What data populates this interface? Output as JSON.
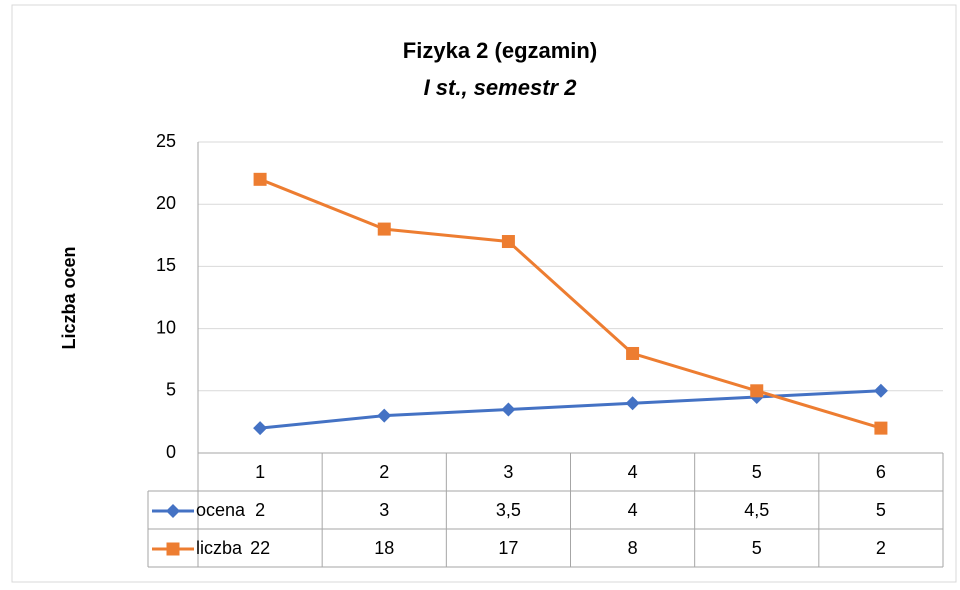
{
  "chart_data": {
    "type": "line",
    "title": "Fizyka 2 (egzamin)",
    "subtitle": "I st., semestr 2",
    "y_label": "Liczba ocen",
    "categories": [
      "1",
      "2",
      "3",
      "4",
      "5",
      "6"
    ],
    "series": [
      {
        "name": "ocena",
        "color": "#4472c4",
        "marker": "diamond",
        "values": [
          2,
          3,
          3.5,
          4,
          4.5,
          5
        ],
        "value_labels": [
          "2",
          "3",
          "3,5",
          "4",
          "4,5",
          "5"
        ]
      },
      {
        "name": "liczba",
        "color": "#ed7d31",
        "marker": "square",
        "values": [
          22,
          18,
          17,
          8,
          5,
          2
        ]
      }
    ],
    "ylim": [
      0,
      25
    ],
    "yticks": [
      0,
      5,
      10,
      15,
      20,
      25
    ],
    "grid": true,
    "data_table": true
  }
}
